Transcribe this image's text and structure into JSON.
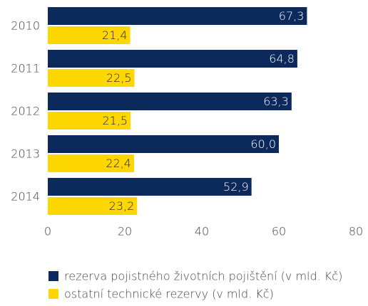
{
  "chart_data": {
    "type": "hbar",
    "categories": [
      "2010",
      "2011",
      "2012",
      "2013",
      "2014"
    ],
    "series": [
      {
        "name": "rezerva pojistného životních pojištění (v mld. Kč)",
        "color": "#0b2a5b",
        "values": [
          67.3,
          64.8,
          63.3,
          60.0,
          52.9
        ],
        "value_labels": [
          "67,3",
          "64,8",
          "63,3",
          "60,0",
          "52,9"
        ]
      },
      {
        "name": "ostatní technické rezervy (v mld. Kč)",
        "color": "#ffd700",
        "values": [
          21.4,
          22.5,
          21.5,
          22.4,
          23.2
        ],
        "value_labels": [
          "21,4",
          "22,5",
          "21,5",
          "22,4",
          "23,2"
        ]
      }
    ],
    "xlim": [
      0,
      80
    ],
    "xticks": [
      0,
      20,
      40,
      60,
      80
    ],
    "grid": false,
    "legend": "bottom"
  }
}
